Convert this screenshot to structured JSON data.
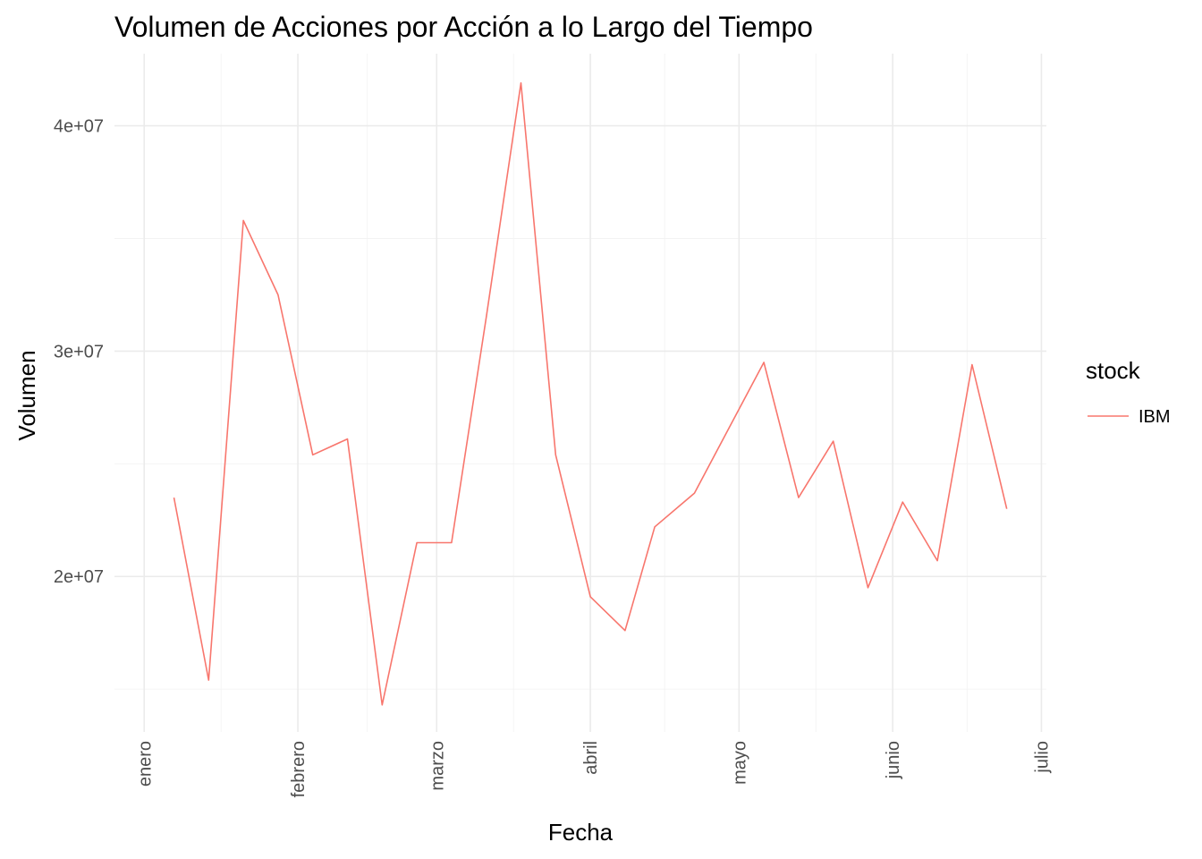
{
  "chart_data": {
    "type": "line",
    "title": "Volumen de Acciones por Acción a lo Largo del Tiempo",
    "xlabel": "Fecha",
    "ylabel": "Volumen",
    "x_tick_labels": [
      "enero",
      "febrero",
      "marzo",
      "abril",
      "mayo",
      "junio",
      "julio"
    ],
    "x_tick_dates": [
      "2022-01-01",
      "2022-02-01",
      "2022-03-01",
      "2022-04-01",
      "2022-05-01",
      "2022-06-01",
      "2022-07-01"
    ],
    "y_tick_labels": [
      "2e+07",
      "3e+07",
      "4e+07"
    ],
    "y_tick_values": [
      20000000,
      30000000,
      40000000
    ],
    "xlim": [
      "2021-12-26",
      "2022-07-02"
    ],
    "ylim": [
      13100000,
      43200000
    ],
    "grid": true,
    "legend_title": "stock",
    "legend_position": "right",
    "series": [
      {
        "name": "IBM",
        "color": "#F8766D",
        "x": [
          "2022-01-07",
          "2022-01-14",
          "2022-01-21",
          "2022-01-28",
          "2022-02-04",
          "2022-02-11",
          "2022-02-18",
          "2022-02-25",
          "2022-03-04",
          "2022-03-11",
          "2022-03-18",
          "2022-03-25",
          "2022-04-01",
          "2022-04-08",
          "2022-04-14",
          "2022-04-22",
          "2022-04-29",
          "2022-05-06",
          "2022-05-13",
          "2022-05-20",
          "2022-05-27",
          "2022-06-03",
          "2022-06-10",
          "2022-06-17",
          "2022-06-24"
        ],
        "values": [
          23500000,
          15400000,
          35800000,
          32500000,
          25400000,
          26100000,
          14300000,
          21500000,
          21500000,
          31500000,
          41900000,
          25400000,
          19100000,
          17600000,
          22200000,
          23700000,
          26600000,
          29500000,
          23500000,
          26000000,
          19500000,
          23300000,
          20700000,
          29400000,
          23000000
        ]
      }
    ]
  }
}
